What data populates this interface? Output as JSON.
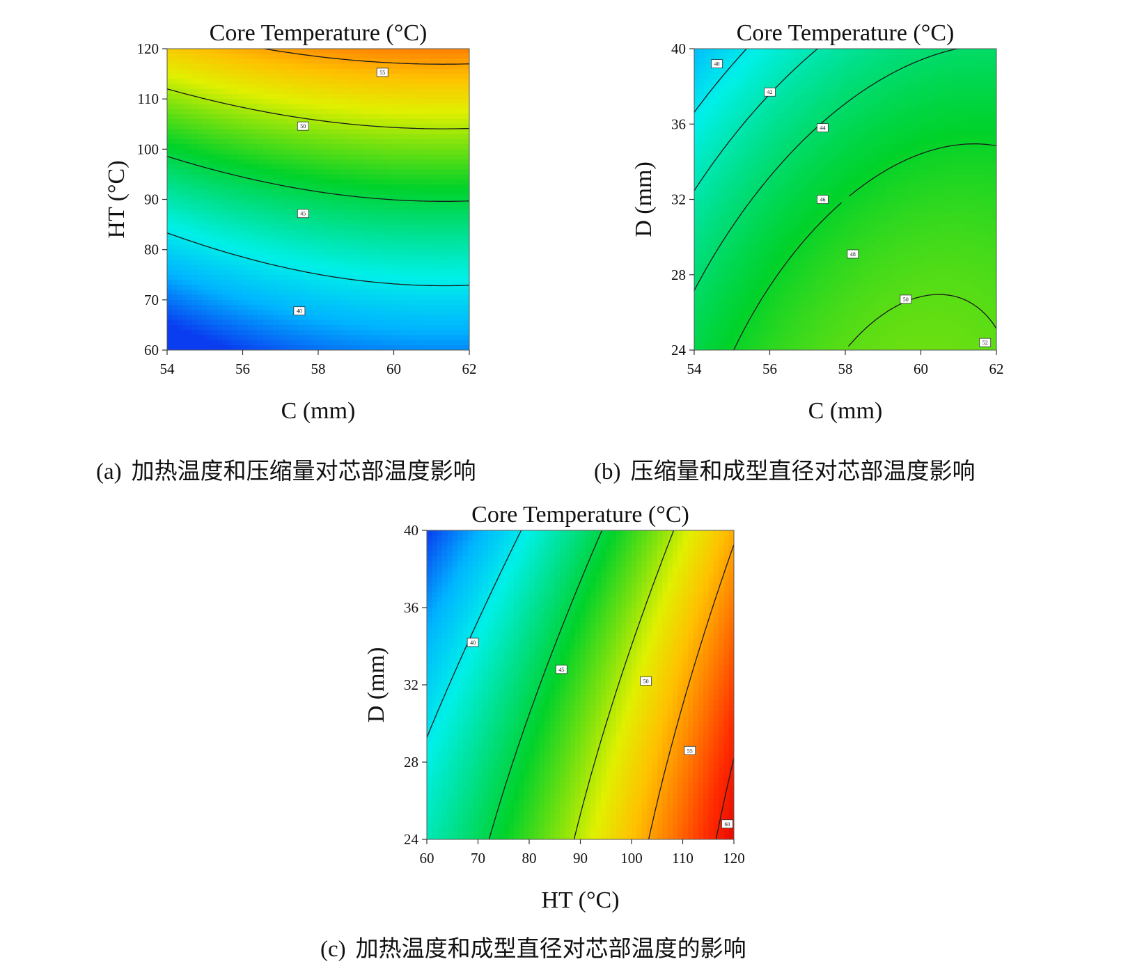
{
  "figure": {
    "captions": [
      {
        "tag": "(a)",
        "text": "加热温度和压缩量对芯部温度影响"
      },
      {
        "tag": "(b)",
        "text": "压缩量和成型直径对芯部温度影响"
      },
      {
        "tag": "(c)",
        "text": "加热温度和成型直径对芯部温度的影响"
      }
    ]
  },
  "chart_data": [
    {
      "id": "a",
      "type": "contour",
      "title": "Core Temperature (°C)",
      "xlabel": "C (mm)",
      "ylabel": "HT (°C)",
      "xlim": [
        54,
        62
      ],
      "ylim": [
        60,
        120
      ],
      "xticks": [
        54,
        56,
        58,
        60,
        62
      ],
      "yticks": [
        60,
        70,
        80,
        90,
        100,
        110,
        120
      ],
      "colorscale": [
        "#0a3cf0",
        "#00b4ff",
        "#00f0e8",
        "#00e08a",
        "#00d22a",
        "#6ee010",
        "#e0f000",
        "#ffc000",
        "#ff7800",
        "#ff2a00",
        "#e00000"
      ],
      "value_range": [
        35,
        62
      ],
      "model": {
        "kind": "poly2",
        "c0": 44.5,
        "cx": 1.5,
        "cy": 9.75,
        "cxx": -0.9,
        "cyy": 1.4,
        "cxy": 0
      },
      "contours": [
        {
          "level": 40,
          "label": "40",
          "label_at": [
            57.5,
            67.8
          ]
        },
        {
          "level": 45,
          "label": "45",
          "label_at": [
            57.6,
            87.2
          ]
        },
        {
          "level": 50,
          "label": "50",
          "label_at": [
            57.6,
            104.6
          ]
        },
        {
          "level": 55,
          "label": "55",
          "label_at": [
            59.7,
            115.3
          ]
        }
      ]
    },
    {
      "id": "b",
      "type": "contour",
      "title": "Core Temperature (°C)",
      "xlabel": "C (mm)",
      "ylabel": "D (mm)",
      "xlim": [
        54,
        62
      ],
      "ylim": [
        24,
        40
      ],
      "xticks": [
        54,
        56,
        58,
        60,
        62
      ],
      "yticks": [
        24,
        28,
        32,
        36,
        40
      ],
      "colorscale": [
        "#0a3cf0",
        "#00b4ff",
        "#00f0e8",
        "#00e08a",
        "#00d22a",
        "#6ee010",
        "#e0f000",
        "#ffc000",
        "#ff7800",
        "#ff2a00",
        "#e00000"
      ],
      "value_range": [
        35,
        62
      ],
      "model": {
        "kind": "poly2",
        "c0": 46,
        "cx": 2.3,
        "cy": -2.7,
        "cxx": -1.5,
        "cyy": -0.7,
        "cxy": 0.7
      },
      "contours": [
        {
          "level": 40,
          "label": "40",
          "label_at": [
            54.6,
            39.2
          ]
        },
        {
          "level": 42,
          "label": "42",
          "label_at": [
            56.0,
            37.7
          ]
        },
        {
          "level": 44,
          "label": "44",
          "label_at": [
            57.4,
            35.8
          ]
        },
        {
          "level": 46,
          "label": "46",
          "label_at": [
            57.4,
            32.0
          ]
        },
        {
          "level": 48,
          "label": "48",
          "label_at": [
            58.2,
            29.1
          ]
        },
        {
          "level": 50,
          "label": "50",
          "label_at": [
            59.6,
            26.7
          ]
        },
        {
          "level": 52,
          "label": "52",
          "label_at": [
            61.7,
            24.4
          ]
        }
      ]
    },
    {
      "id": "c",
      "type": "contour",
      "title": "Core Temperature (°C)",
      "xlabel": "HT (°C)",
      "ylabel": "D (mm)",
      "xlim": [
        60,
        120
      ],
      "ylim": [
        24,
        40
      ],
      "xticks": [
        60,
        70,
        80,
        90,
        100,
        110,
        120
      ],
      "yticks": [
        24,
        28,
        32,
        36,
        40
      ],
      "colorscale": [
        "#0a3cf0",
        "#00b4ff",
        "#00f0e8",
        "#00e08a",
        "#00d22a",
        "#6ee010",
        "#e0f000",
        "#ffc000",
        "#ff7800",
        "#ff2a00",
        "#e00000"
      ],
      "value_range": [
        35,
        62
      ],
      "model": {
        "kind": "poly2",
        "c0": 47.5,
        "cx": 9.8,
        "cy": -3.4,
        "cxx": 1.2,
        "cyy": -0.5,
        "cxy": 0
      },
      "contours": [
        {
          "level": 40,
          "label": "40",
          "label_at": [
            69.0,
            34.2
          ]
        },
        {
          "level": 45,
          "label": "45",
          "label_at": [
            86.3,
            32.8
          ]
        },
        {
          "level": 50,
          "label": "50",
          "label_at": [
            102.8,
            32.2
          ]
        },
        {
          "level": 55,
          "label": "55",
          "label_at": [
            111.4,
            28.6
          ]
        },
        {
          "level": 60,
          "label": "60",
          "label_at": [
            118.7,
            24.8
          ]
        }
      ]
    }
  ]
}
